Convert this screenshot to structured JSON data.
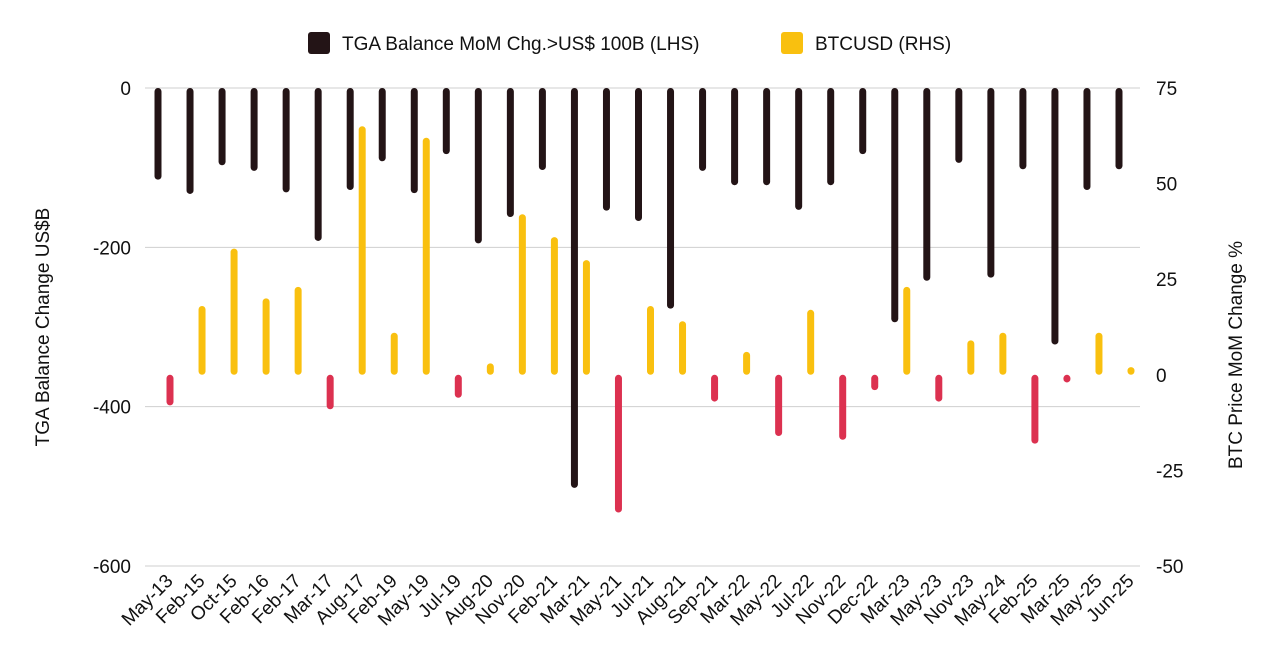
{
  "chart_data": {
    "type": "bar",
    "categories": [
      "May-13",
      "Feb-15",
      "Oct-15",
      "Feb-16",
      "Feb-17",
      "Mar-17",
      "Aug-17",
      "Feb-19",
      "May-19",
      "Jul-19",
      "Aug-20",
      "Nov-20",
      "Feb-21",
      "Mar-21",
      "May-21",
      "Jul-21",
      "Aug-21",
      "Sep-21",
      "Mar-22",
      "May-22",
      "Jul-22",
      "Nov-22",
      "Dec-22",
      "Mar-23",
      "May-23",
      "Nov-23",
      "May-24",
      "Feb-25",
      "Mar-25",
      "May-25",
      "Jun-25"
    ],
    "series": [
      {
        "name": "TGA Balance MoM Chg.>US$ 100B (LHS)",
        "axis": "left",
        "color": "#231416",
        "values": [
          -115,
          -133,
          -97,
          -104,
          -131,
          -192,
          -128,
          -92,
          -132,
          -83,
          -195,
          -162,
          -103,
          -502,
          -154,
          -167,
          -277,
          -104,
          -122,
          -122,
          -153,
          -122,
          -83,
          -294,
          -242,
          -94,
          -238,
          -102,
          -322,
          -128,
          -102
        ]
      },
      {
        "name": "BTCUSD (RHS)",
        "axis": "right",
        "color": "#F9C00F",
        "negative_color": "#DC3150",
        "values": [
          -8,
          18,
          33,
          20,
          23,
          -9,
          65,
          11,
          62,
          -6,
          3,
          42,
          36,
          30,
          -36,
          18,
          14,
          -7,
          6,
          -16,
          17,
          -17,
          -4,
          23,
          -7,
          9,
          11,
          -18,
          -2,
          11,
          2
        ]
      }
    ],
    "title": "",
    "legend": [
      "TGA Balance MoM Chg.>US$ 100B (LHS)",
      "BTCUSD (RHS)"
    ],
    "legend_position": "top-center",
    "ylabel": "TGA Balance Change US$B",
    "ylabel_right": "BTC Price MoM Change %",
    "ylim": [
      -600,
      0
    ],
    "ylim_right": [
      -50,
      75
    ],
    "yticks": [
      0,
      -200,
      -400,
      -600
    ],
    "yticks_labels": [
      "0",
      "-200",
      "-400",
      "-600"
    ],
    "yticks_right": [
      75,
      50,
      25,
      0,
      -25,
      -50
    ],
    "yticks_right_labels": [
      "75",
      "50",
      "25",
      "0",
      "-25",
      "-50"
    ],
    "grid": true
  }
}
